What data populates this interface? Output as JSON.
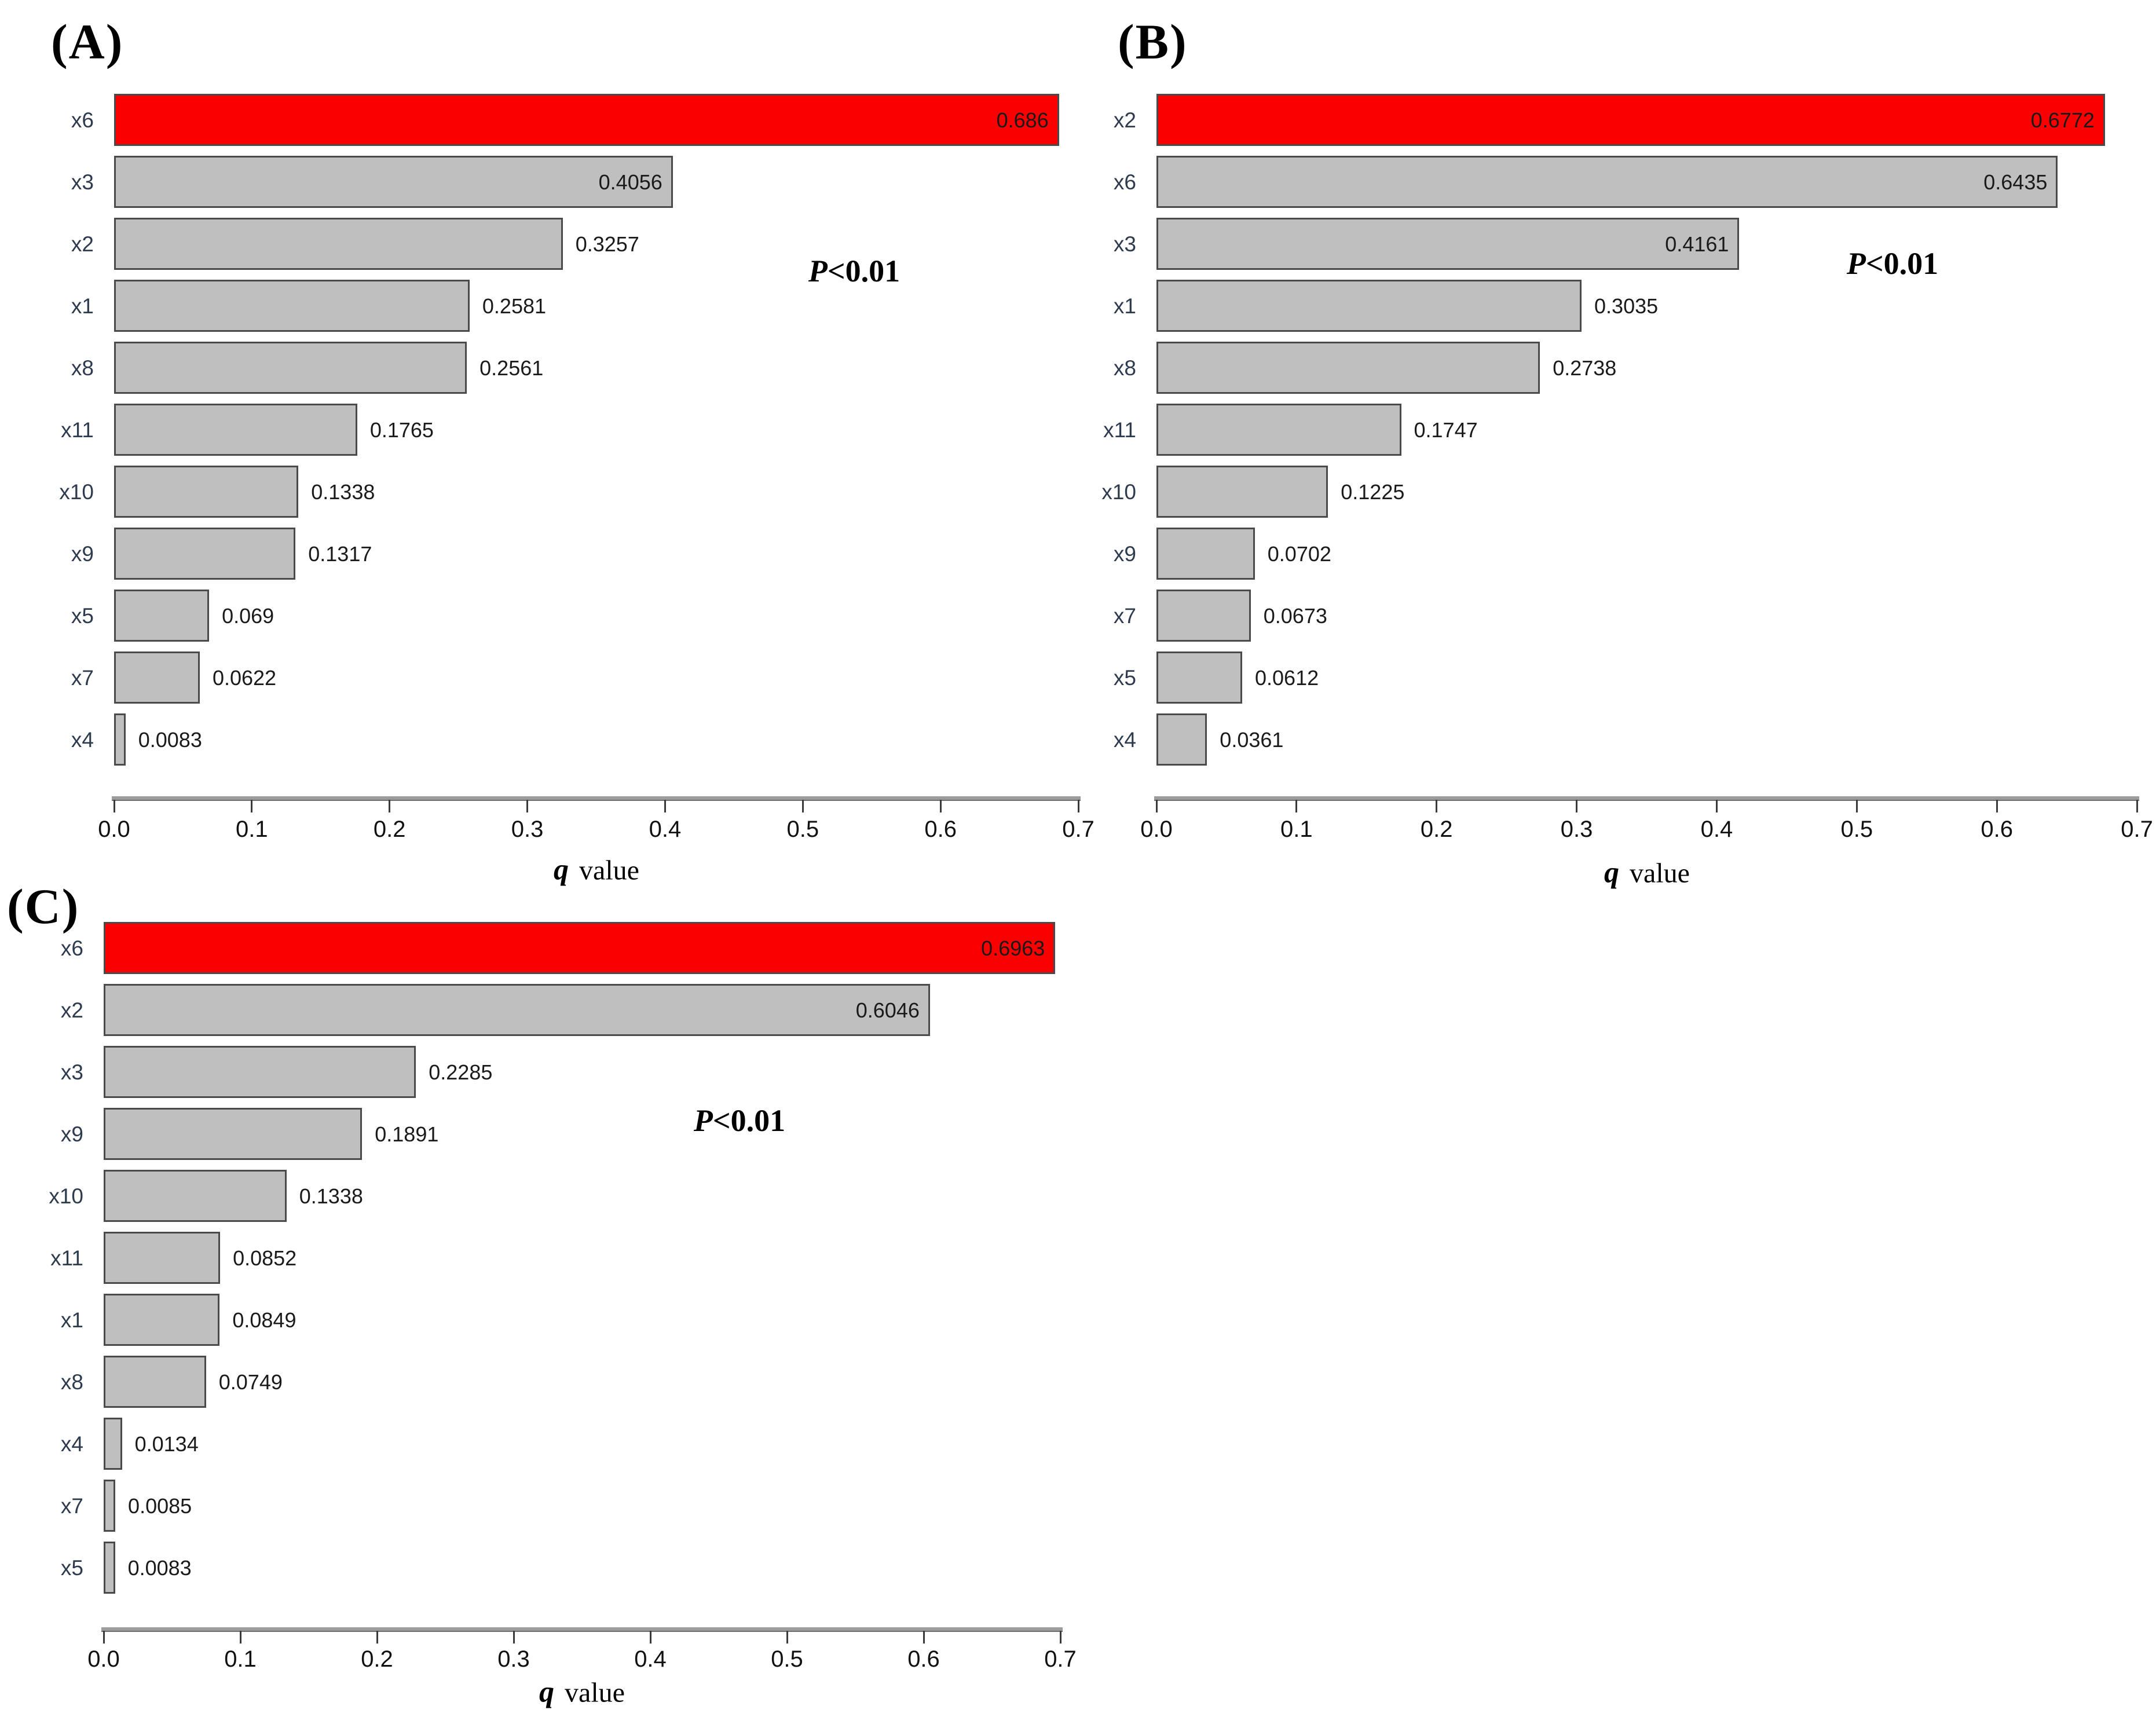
{
  "figure": {
    "background": "#ffffff",
    "bar_fill": "#bfbfbf",
    "bar_highlight_fill": "#fb0000",
    "bar_border": "#4a4a4a",
    "axis_color": "#9c9c9c",
    "text_color": "#1a1a1a"
  },
  "axis": {
    "xlabel_q": "q",
    "xlabel_rest": "value",
    "ticks": [
      "0.0",
      "0.1",
      "0.2",
      "0.3",
      "0.4",
      "0.5",
      "0.6",
      "0.7"
    ],
    "min": 0.0,
    "max": 0.7
  },
  "annotation": {
    "p_italic": "P",
    "p_rest": "<0.01"
  },
  "chart_data": [
    {
      "type": "bar",
      "orientation": "horizontal",
      "panel": "(A)",
      "title": "",
      "xlabel": "q value",
      "xlim": [
        0.0,
        0.7
      ],
      "xticks": [
        0.0,
        0.1,
        0.2,
        0.3,
        0.4,
        0.5,
        0.6,
        0.7
      ],
      "annotation": "P<0.01",
      "categories": [
        "x6",
        "x3",
        "x2",
        "x1",
        "x8",
        "x11",
        "x10",
        "x9",
        "x5",
        "x7",
        "x4"
      ],
      "values": [
        0.686,
        0.4056,
        0.3257,
        0.2581,
        0.2561,
        0.1765,
        0.1338,
        0.1317,
        0.069,
        0.0622,
        0.0083
      ],
      "value_labels": [
        "0.686",
        "0.4056",
        "0.3257",
        "0.2581",
        "0.2561",
        "0.1765",
        "0.1338",
        "0.1317",
        "0.069",
        "0.0622",
        "0.0083"
      ],
      "label_inside": [
        true,
        true,
        false,
        false,
        false,
        false,
        false,
        false,
        false,
        false,
        false
      ],
      "highlight_category": "x6",
      "highlight_color": "#fb0000",
      "bar_color": "#bfbfbf",
      "legend": "none",
      "grid": false
    },
    {
      "type": "bar",
      "orientation": "horizontal",
      "panel": "(B)",
      "title": "",
      "xlabel": "q value",
      "xlim": [
        0.0,
        0.7
      ],
      "xticks": [
        0.0,
        0.1,
        0.2,
        0.3,
        0.4,
        0.5,
        0.6,
        0.7
      ],
      "annotation": "P<0.01",
      "categories": [
        "x2",
        "x6",
        "x3",
        "x1",
        "x8",
        "x11",
        "x10",
        "x9",
        "x7",
        "x5",
        "x4"
      ],
      "values": [
        0.6772,
        0.6435,
        0.4161,
        0.3035,
        0.2738,
        0.1747,
        0.1225,
        0.0702,
        0.0673,
        0.0612,
        0.0361
      ],
      "value_labels": [
        "0.6772",
        "0.6435",
        "0.4161",
        "0.3035",
        "0.2738",
        "0.1747",
        "0.1225",
        "0.0702",
        "0.0673",
        "0.0612",
        "0.0361"
      ],
      "label_inside": [
        true,
        true,
        true,
        false,
        false,
        false,
        false,
        false,
        false,
        false,
        false
      ],
      "highlight_category": "x2",
      "highlight_color": "#fb0000",
      "bar_color": "#bfbfbf",
      "legend": "none",
      "grid": false
    },
    {
      "type": "bar",
      "orientation": "horizontal",
      "panel": "(C)",
      "title": "",
      "xlabel": "q value",
      "xlim": [
        0.0,
        0.7
      ],
      "xticks": [
        0.0,
        0.1,
        0.2,
        0.3,
        0.4,
        0.5,
        0.6,
        0.7
      ],
      "annotation": "P<0.01",
      "categories": [
        "x6",
        "x2",
        "x3",
        "x9",
        "x10",
        "x11",
        "x1",
        "x8",
        "x4",
        "x7",
        "x5"
      ],
      "values": [
        0.6963,
        0.6046,
        0.2285,
        0.1891,
        0.1338,
        0.0852,
        0.0849,
        0.0749,
        0.0134,
        0.0085,
        0.0083
      ],
      "value_labels": [
        "0.6963",
        "0.6046",
        "0.2285",
        "0.1891",
        "0.1338",
        "0.0852",
        "0.0849",
        "0.0749",
        "0.0134",
        "0.0085",
        "0.0083"
      ],
      "label_inside": [
        true,
        true,
        false,
        false,
        false,
        false,
        false,
        false,
        false,
        false,
        false
      ],
      "highlight_category": "x6",
      "highlight_color": "#fb0000",
      "bar_color": "#bfbfbf",
      "legend": "none",
      "grid": false
    }
  ]
}
